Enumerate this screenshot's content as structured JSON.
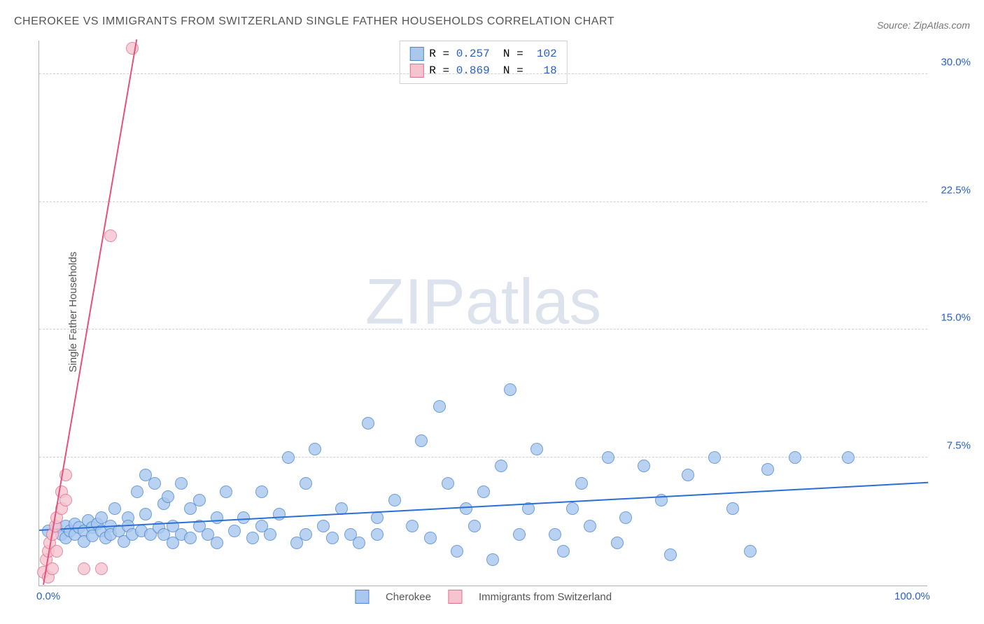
{
  "title": "CHEROKEE VS IMMIGRANTS FROM SWITZERLAND SINGLE FATHER HOUSEHOLDS CORRELATION CHART",
  "source": "Source: ZipAtlas.com",
  "y_axis_label": "Single Father Households",
  "watermark": {
    "bold": "ZIP",
    "light": "atlas"
  },
  "chart": {
    "type": "scatter",
    "background_color": "#ffffff",
    "grid_color": "#d0d0d0",
    "axis_color": "#b0b0b0",
    "xlim": [
      0,
      100
    ],
    "ylim": [
      0,
      32
    ],
    "y_ticks": [
      7.5,
      15.0,
      22.5,
      30.0
    ],
    "y_tick_labels": [
      "7.5%",
      "15.0%",
      "22.5%",
      "30.0%"
    ],
    "y_tick_color": "#2861c4",
    "x_ticks": [
      0,
      100
    ],
    "x_tick_labels": [
      "0.0%",
      "100.0%"
    ],
    "x_tick_color": "#2861c4",
    "marker_radius": 9,
    "marker_stroke_width": 1,
    "trend_line_width": 2,
    "series": [
      {
        "name": "Cherokee",
        "fill_color": "#a9c8ee",
        "stroke_color": "#4a86d0",
        "trend_color": "#2a6fd6",
        "trend": {
          "x1": 0,
          "y1": 3.2,
          "x2": 100,
          "y2": 6.0
        },
        "R": "0.257",
        "N": "102",
        "points": [
          [
            1,
            3.2
          ],
          [
            2,
            3.4
          ],
          [
            2.5,
            3.0
          ],
          [
            3,
            3.5
          ],
          [
            3,
            2.8
          ],
          [
            3.5,
            3.2
          ],
          [
            4,
            3.6
          ],
          [
            4,
            3.0
          ],
          [
            4.5,
            3.4
          ],
          [
            5,
            3.2
          ],
          [
            5,
            2.6
          ],
          [
            5.5,
            3.8
          ],
          [
            6,
            3.4
          ],
          [
            6,
            2.9
          ],
          [
            6.5,
            3.6
          ],
          [
            7,
            3.2
          ],
          [
            7,
            4.0
          ],
          [
            7.5,
            2.8
          ],
          [
            8,
            3.5
          ],
          [
            8,
            3.0
          ],
          [
            8.5,
            4.5
          ],
          [
            9,
            3.2
          ],
          [
            9.5,
            2.6
          ],
          [
            10,
            4.0
          ],
          [
            10,
            3.5
          ],
          [
            10.5,
            3.0
          ],
          [
            11,
            5.5
          ],
          [
            11.5,
            3.2
          ],
          [
            12,
            4.2
          ],
          [
            12,
            6.5
          ],
          [
            12.5,
            3.0
          ],
          [
            13,
            6.0
          ],
          [
            13.5,
            3.4
          ],
          [
            14,
            4.8
          ],
          [
            14,
            3.0
          ],
          [
            14.5,
            5.2
          ],
          [
            15,
            3.5
          ],
          [
            15,
            2.5
          ],
          [
            16,
            6.0
          ],
          [
            16,
            3.0
          ],
          [
            17,
            4.5
          ],
          [
            17,
            2.8
          ],
          [
            18,
            3.5
          ],
          [
            18,
            5.0
          ],
          [
            19,
            3.0
          ],
          [
            20,
            4.0
          ],
          [
            20,
            2.5
          ],
          [
            21,
            5.5
          ],
          [
            22,
            3.2
          ],
          [
            23,
            4.0
          ],
          [
            24,
            2.8
          ],
          [
            25,
            3.5
          ],
          [
            25,
            5.5
          ],
          [
            26,
            3.0
          ],
          [
            27,
            4.2
          ],
          [
            28,
            7.5
          ],
          [
            29,
            2.5
          ],
          [
            30,
            6.0
          ],
          [
            30,
            3.0
          ],
          [
            31,
            8.0
          ],
          [
            32,
            3.5
          ],
          [
            33,
            2.8
          ],
          [
            34,
            4.5
          ],
          [
            35,
            3.0
          ],
          [
            36,
            2.5
          ],
          [
            37,
            9.5
          ],
          [
            38,
            4.0
          ],
          [
            38,
            3.0
          ],
          [
            40,
            5.0
          ],
          [
            42,
            3.5
          ],
          [
            43,
            8.5
          ],
          [
            44,
            2.8
          ],
          [
            45,
            10.5
          ],
          [
            46,
            6.0
          ],
          [
            47,
            2.0
          ],
          [
            48,
            4.5
          ],
          [
            49,
            3.5
          ],
          [
            50,
            5.5
          ],
          [
            51,
            1.5
          ],
          [
            52,
            7.0
          ],
          [
            53,
            11.5
          ],
          [
            54,
            3.0
          ],
          [
            55,
            4.5
          ],
          [
            56,
            8.0
          ],
          [
            58,
            3.0
          ],
          [
            59,
            2.0
          ],
          [
            60,
            4.5
          ],
          [
            61,
            6.0
          ],
          [
            62,
            3.5
          ],
          [
            64,
            7.5
          ],
          [
            65,
            2.5
          ],
          [
            66,
            4.0
          ],
          [
            68,
            7.0
          ],
          [
            70,
            5.0
          ],
          [
            71,
            1.8
          ],
          [
            73,
            6.5
          ],
          [
            76,
            7.5
          ],
          [
            78,
            4.5
          ],
          [
            80,
            2.0
          ],
          [
            82,
            6.8
          ],
          [
            85,
            7.5
          ],
          [
            91,
            7.5
          ]
        ]
      },
      {
        "name": "Immigrants from Switzerland",
        "fill_color": "#f5c4cf",
        "stroke_color": "#e07090",
        "trend_color": "#e84f7a",
        "trend": {
          "x1": 0.5,
          "y1": 0,
          "x2": 11,
          "y2": 32
        },
        "R": "0.869",
        "N": "18",
        "points": [
          [
            0.5,
            0.8
          ],
          [
            0.8,
            1.5
          ],
          [
            1,
            2.0
          ],
          [
            1,
            0.5
          ],
          [
            1.2,
            2.5
          ],
          [
            1.5,
            3.0
          ],
          [
            1.5,
            1.0
          ],
          [
            1.8,
            3.5
          ],
          [
            2,
            4.0
          ],
          [
            2,
            2.0
          ],
          [
            2.5,
            4.5
          ],
          [
            2.5,
            5.5
          ],
          [
            3,
            5.0
          ],
          [
            3,
            6.5
          ],
          [
            5,
            1.0
          ],
          [
            7,
            1.0
          ],
          [
            8,
            20.5
          ],
          [
            10.5,
            31.5
          ]
        ]
      }
    ]
  },
  "legend_bottom": [
    {
      "label": "Cherokee",
      "series_idx": 0
    },
    {
      "label": "Immigrants from Switzerland",
      "series_idx": 1
    }
  ]
}
